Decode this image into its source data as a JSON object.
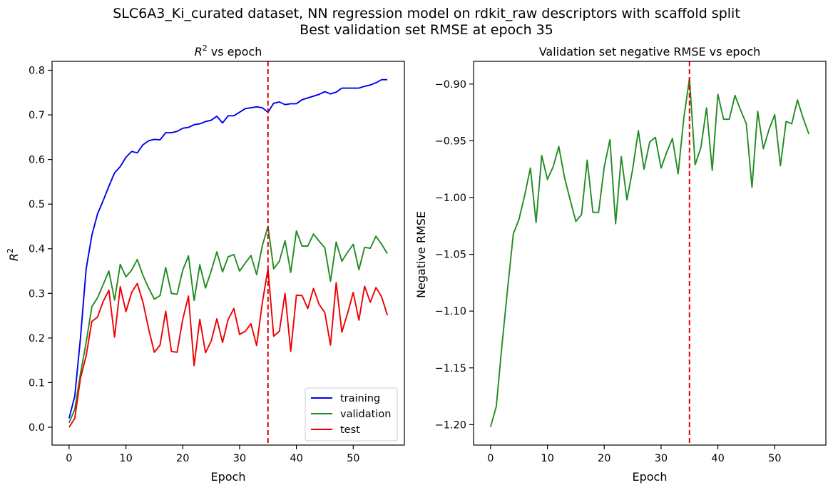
{
  "figure": {
    "suptitle_line1": "SLC6A3_Ki_curated dataset, NN regression model on rdkit_raw descriptors with scaffold split",
    "suptitle_line2": "Best validation set RMSE at epoch 35"
  },
  "chart_data": [
    {
      "type": "line",
      "title_main": "R",
      "title_sup": "2",
      "title_rest": " vs epoch",
      "xlabel": "Epoch",
      "ylabel_main": "R",
      "ylabel_sup": "2",
      "xlim": [
        -3,
        59
      ],
      "ylim": [
        -0.04,
        0.82
      ],
      "xticks": [
        0,
        10,
        20,
        30,
        40,
        50
      ],
      "yticks": [
        0.0,
        0.1,
        0.2,
        0.3,
        0.4,
        0.5,
        0.6,
        0.7,
        0.8
      ],
      "ytick_labels": [
        "0.0",
        "0.1",
        "0.2",
        "0.3",
        "0.4",
        "0.5",
        "0.6",
        "0.7",
        "0.8"
      ],
      "legend_position": "lower-right",
      "vline": {
        "x": 35,
        "color": "#e00000",
        "style": "dashed"
      },
      "series": [
        {
          "name": "training",
          "color": "#0000ee",
          "values": [
            0.02,
            0.07,
            0.2,
            0.355,
            0.43,
            0.478,
            0.508,
            0.54,
            0.57,
            0.584,
            0.605,
            0.618,
            0.615,
            0.633,
            0.642,
            0.645,
            0.644,
            0.66,
            0.66,
            0.663,
            0.67,
            0.672,
            0.678,
            0.68,
            0.685,
            0.688,
            0.697,
            0.682,
            0.698,
            0.698,
            0.706,
            0.714,
            0.716,
            0.718,
            0.716,
            0.706,
            0.726,
            0.729,
            0.723,
            0.725,
            0.725,
            0.734,
            0.738,
            0.742,
            0.746,
            0.752,
            0.747,
            0.751,
            0.76,
            0.76,
            0.76,
            0.76,
            0.764,
            0.767,
            0.772,
            0.779,
            0.779
          ]
        },
        {
          "name": "validation",
          "color": "#228b22",
          "values": [
            0.01,
            0.04,
            0.12,
            0.19,
            0.27,
            0.29,
            0.32,
            0.35,
            0.285,
            0.365,
            0.337,
            0.352,
            0.376,
            0.34,
            0.312,
            0.287,
            0.295,
            0.358,
            0.3,
            0.298,
            0.352,
            0.384,
            0.284,
            0.364,
            0.312,
            0.35,
            0.393,
            0.348,
            0.382,
            0.387,
            0.35,
            0.368,
            0.385,
            0.342,
            0.407,
            0.45,
            0.355,
            0.372,
            0.418,
            0.347,
            0.44,
            0.406,
            0.406,
            0.433,
            0.417,
            0.402,
            0.327,
            0.415,
            0.372,
            0.392,
            0.41,
            0.353,
            0.403,
            0.401,
            0.428,
            0.41,
            0.389
          ]
        },
        {
          "name": "test",
          "color": "#ee0000",
          "values": [
            0.0,
            0.02,
            0.11,
            0.16,
            0.237,
            0.247,
            0.282,
            0.307,
            0.202,
            0.315,
            0.259,
            0.302,
            0.322,
            0.28,
            0.22,
            0.168,
            0.184,
            0.26,
            0.17,
            0.168,
            0.242,
            0.294,
            0.138,
            0.242,
            0.167,
            0.193,
            0.243,
            0.19,
            0.242,
            0.266,
            0.208,
            0.215,
            0.232,
            0.183,
            0.279,
            0.355,
            0.204,
            0.215,
            0.3,
            0.17,
            0.296,
            0.295,
            0.266,
            0.311,
            0.275,
            0.257,
            0.184,
            0.324,
            0.213,
            0.255,
            0.302,
            0.24,
            0.316,
            0.28,
            0.313,
            0.292,
            0.251
          ]
        }
      ]
    },
    {
      "type": "line",
      "title": "Validation set negative RMSE vs epoch",
      "xlabel": "Epoch",
      "ylabel": "Negative RMSE",
      "xlim": [
        -3,
        59
      ],
      "ylim": [
        -1.218,
        -0.88
      ],
      "xticks": [
        0,
        10,
        20,
        30,
        40,
        50
      ],
      "yticks": [
        -1.2,
        -1.15,
        -1.1,
        -1.05,
        -1.0,
        -0.95,
        -0.9
      ],
      "ytick_labels": [
        "−1.20",
        "−1.15",
        "−1.10",
        "−1.05",
        "−1.00",
        "−0.95",
        "−0.90"
      ],
      "vline": {
        "x": 35,
        "color": "#e00000",
        "style": "dashed"
      },
      "series": [
        {
          "color": "#228b22",
          "values": [
            -1.202,
            -1.184,
            -1.13,
            -1.08,
            -1.032,
            -1.019,
            -0.998,
            -0.974,
            -1.022,
            -0.963,
            -0.984,
            -0.973,
            -0.955,
            -0.982,
            -1.002,
            -1.021,
            -1.015,
            -0.967,
            -1.013,
            -1.013,
            -0.973,
            -0.949,
            -1.023,
            -0.964,
            -1.002,
            -0.975,
            -0.941,
            -0.975,
            -0.951,
            -0.947,
            -0.974,
            -0.96,
            -0.948,
            -0.979,
            -0.93,
            -0.895,
            -0.971,
            -0.956,
            -0.921,
            -0.976,
            -0.909,
            -0.931,
            -0.931,
            -0.91,
            -0.923,
            -0.935,
            -0.991,
            -0.924,
            -0.957,
            -0.94,
            -0.927,
            -0.972,
            -0.933,
            -0.935,
            -0.914,
            -0.93,
            -0.944
          ]
        }
      ]
    }
  ]
}
